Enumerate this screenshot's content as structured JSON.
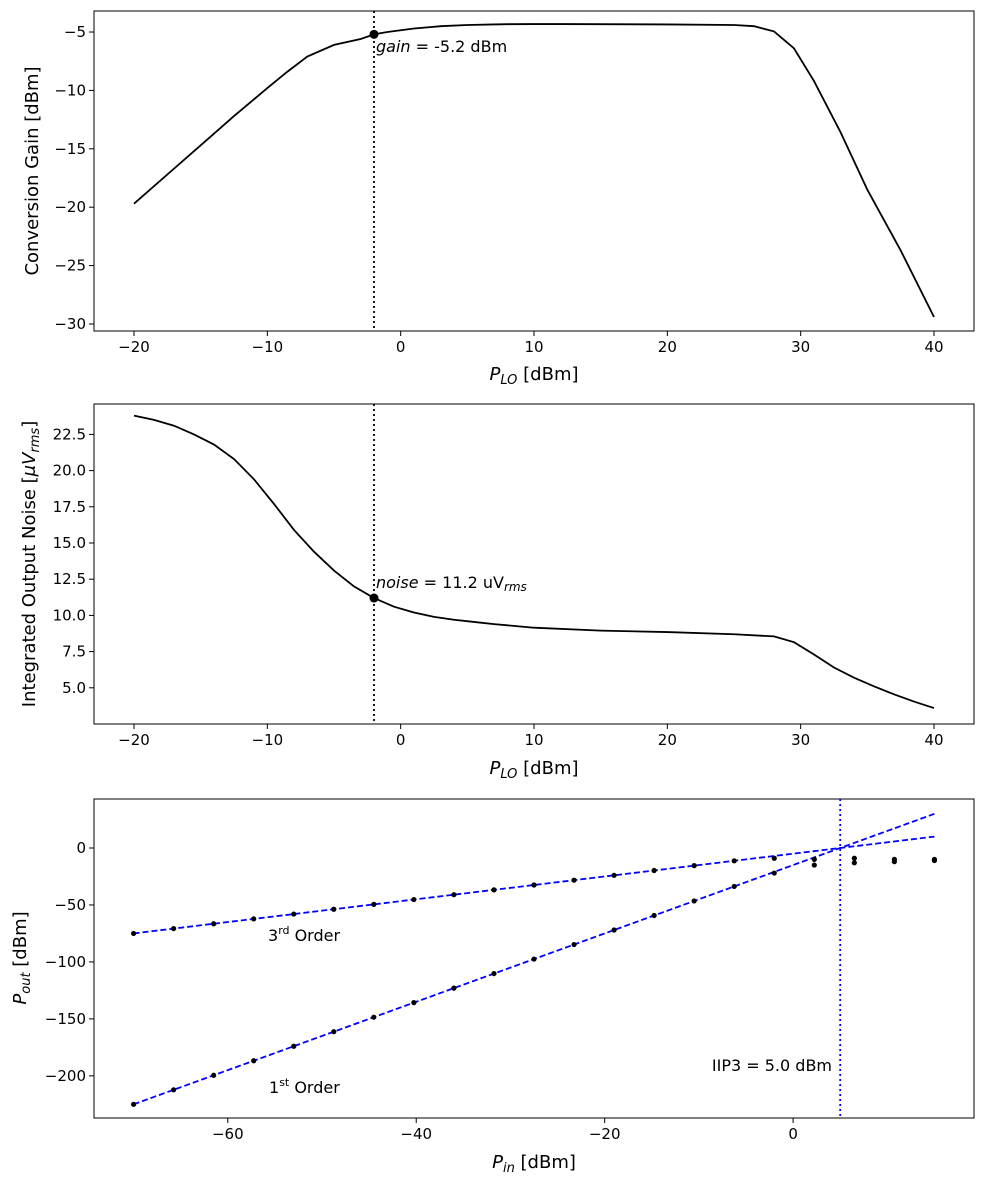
{
  "chart_data": [
    {
      "type": "line",
      "xlabel": "P",
      "xlabel_sub": "LO",
      "xlabel_unit": " [dBm]",
      "ylabel": "Conversion Gain [dBm]",
      "xlim": [
        -23,
        43
      ],
      "ylim": [
        -30.6,
        -3.2
      ],
      "xticks": [
        -20,
        -10,
        0,
        10,
        20,
        30,
        40
      ],
      "xtick_labels": [
        "−20",
        "−10",
        "0",
        "10",
        "20",
        "30",
        "40"
      ],
      "yticks": [
        -5,
        -10,
        -15,
        -20,
        -25,
        -30
      ],
      "ytick_labels": [
        "−5",
        "−10",
        "−15",
        "−20",
        "−25",
        "−30"
      ],
      "series": [
        {
          "name": "gain",
          "color": "#000000",
          "x": [
            -20,
            -17.5,
            -15,
            -12.5,
            -10,
            -8.5,
            -7,
            -5,
            -3,
            -2,
            -1,
            0,
            1,
            2,
            3,
            5,
            7,
            8,
            10,
            12,
            15,
            20,
            25,
            26.5,
            28,
            29.5,
            31,
            33,
            35,
            37.5,
            40
          ],
          "y": [
            -19.7,
            -17.2,
            -14.7,
            -12.2,
            -9.8,
            -8.4,
            -7.1,
            -6.1,
            -5.6,
            -5.2,
            -5.0,
            -4.85,
            -4.7,
            -4.6,
            -4.5,
            -4.4,
            -4.35,
            -4.33,
            -4.32,
            -4.32,
            -4.33,
            -4.35,
            -4.4,
            -4.5,
            -4.95,
            -6.4,
            -9.2,
            -13.6,
            -18.5,
            -23.7,
            -29.4
          ]
        }
      ],
      "vline": -2,
      "marker": {
        "x": -2,
        "y": -5.2
      },
      "annotation": {
        "label": "gain",
        "text": " = -5.2 dBm"
      }
    },
    {
      "type": "line",
      "xlabel": "P",
      "xlabel_sub": "LO",
      "xlabel_unit": " [dBm]",
      "ylabel": "Integrated Output Noise [",
      "ylabel_mu": "μV",
      "ylabel_sub": "rms",
      "ylabel_close": "]",
      "xlim": [
        -23,
        43
      ],
      "ylim": [
        2.5,
        24.6
      ],
      "xticks": [
        -20,
        -10,
        0,
        10,
        20,
        30,
        40
      ],
      "xtick_labels": [
        "−20",
        "−10",
        "0",
        "10",
        "20",
        "30",
        "40"
      ],
      "yticks": [
        5.0,
        7.5,
        10.0,
        12.5,
        15.0,
        17.5,
        20.0,
        22.5
      ],
      "ytick_labels": [
        "5.0",
        "7.5",
        "10.0",
        "12.5",
        "15.0",
        "17.5",
        "20.0",
        "22.5"
      ],
      "series": [
        {
          "name": "noise",
          "color": "#000000",
          "x": [
            -20,
            -18.5,
            -17,
            -15.5,
            -14,
            -12.5,
            -11,
            -9.5,
            -8,
            -6.5,
            -5,
            -3.5,
            -2,
            -0.5,
            1,
            2.5,
            4,
            5.5,
            7,
            10,
            15,
            20,
            25,
            28,
            29.5,
            31,
            32.5,
            34,
            35.5,
            37,
            38.5,
            40
          ],
          "y": [
            23.8,
            23.5,
            23.1,
            22.5,
            21.8,
            20.8,
            19.4,
            17.7,
            15.9,
            14.4,
            13.1,
            12.0,
            11.2,
            10.6,
            10.2,
            9.9,
            9.7,
            9.55,
            9.4,
            9.15,
            8.95,
            8.85,
            8.7,
            8.55,
            8.15,
            7.3,
            6.4,
            5.7,
            5.1,
            4.55,
            4.05,
            3.6
          ]
        }
      ],
      "vline": -2,
      "marker": {
        "x": -2,
        "y": 11.2
      },
      "annotation": {
        "label": "noise",
        "text": " = 11.2 uV",
        "sub": "rms"
      }
    },
    {
      "type": "scatter",
      "xlabel": "P",
      "xlabel_sub": "in",
      "xlabel_unit": " [dBm]",
      "ylabel": "P",
      "ylabel_sub": "out",
      "ylabel_unit": " [dBm]",
      "xlim": [
        -74.2,
        19.2
      ],
      "ylim": [
        -237,
        43
      ],
      "xticks": [
        -60,
        -40,
        -20,
        0
      ],
      "xtick_labels": [
        "−60",
        "−40",
        "−20",
        "0"
      ],
      "yticks": [
        0,
        -50,
        -100,
        -150,
        -200
      ],
      "ytick_labels": [
        "0",
        "−50",
        "−100",
        "−150",
        "−200"
      ],
      "points_first_order": {
        "x": [
          -70,
          -65.75,
          -61.5,
          -57.25,
          -53,
          -48.75,
          -44.5,
          -40.25,
          -36,
          -31.75,
          -27.5,
          -23.25,
          -19,
          -14.75,
          -10.5,
          -6.25,
          -2,
          2.25,
          2.25,
          6.5,
          6.5,
          10.75,
          10.75,
          15,
          15
        ],
        "y": [
          -225,
          -212.25,
          -199.5,
          -186.75,
          -174,
          -161.25,
          -148.5,
          -135.75,
          -123,
          -110.25,
          -97.5,
          -84.75,
          -72,
          -59.25,
          -46.5,
          -33.75,
          -22,
          -15,
          -10,
          -13,
          -9,
          -12,
          -10,
          -11,
          -10
        ]
      },
      "points_third_order": {
        "x": [
          -70,
          -65.75,
          -61.5,
          -57.25,
          -53,
          -48.75,
          -44.5,
          -40.25,
          -36,
          -31.75,
          -27.5,
          -23.25,
          -19,
          -14.75,
          -10.5,
          -6.25,
          -2
        ],
        "y": [
          -75,
          -70.75,
          -66.5,
          -62.25,
          -58,
          -53.75,
          -49.5,
          -45.25,
          -41,
          -36.75,
          -32.5,
          -28.25,
          -24,
          -19.75,
          -15.5,
          -11.25,
          -9
        ]
      },
      "fit_first_order": {
        "x": [
          -70,
          15
        ],
        "y": [
          -225,
          30
        ]
      },
      "fit_third_order": {
        "x": [
          -70,
          15
        ],
        "y": [
          -75,
          10
        ]
      },
      "fit_color": "#0000ff",
      "vline": 5.0,
      "labels": {
        "third_prefix": "3",
        "third_sup": "rd",
        "third_suffix": " Order",
        "first_prefix": "1",
        "first_sup": "st",
        "first_suffix": " Order",
        "iip3": "IIP3 = 5.0 dBm"
      }
    }
  ]
}
